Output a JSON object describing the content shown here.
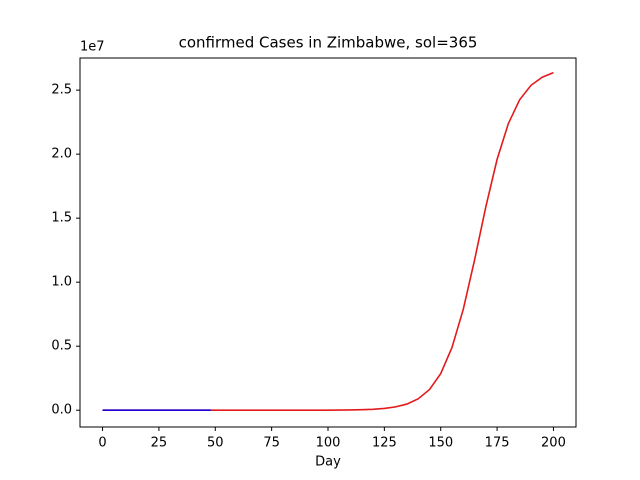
{
  "chart_data": {
    "type": "line",
    "title": "confirmed Cases in Zimbabwe, sol=365",
    "x_label": "Day",
    "y_offset_label": "1e7",
    "xlim": [
      -10,
      210
    ],
    "xticks": [
      0,
      25,
      50,
      75,
      100,
      125,
      150,
      175,
      200
    ],
    "ylim": [
      -1310000,
      27510000
    ],
    "yticks": [
      {
        "value": 0,
        "label": "0.0"
      },
      {
        "value": 5000000,
        "label": "0.5"
      },
      {
        "value": 10000000,
        "label": "1.0"
      },
      {
        "value": 15000000,
        "label": "1.5"
      },
      {
        "value": 20000000,
        "label": "2.0"
      },
      {
        "value": 25000000,
        "label": "2.5"
      }
    ],
    "grid": false,
    "series": [
      {
        "color": "#e31a1c",
        "x": [
          0,
          5,
          10,
          15,
          20,
          25,
          30,
          35,
          40,
          45,
          50,
          55,
          60,
          65,
          70,
          75,
          80,
          85,
          90,
          95,
          100,
          105,
          110,
          115,
          120,
          125,
          130,
          135,
          140,
          145,
          150,
          155,
          160,
          165,
          170,
          175,
          180,
          185,
          190,
          195,
          200
        ],
        "values": [
          0.023,
          0.043,
          0.081,
          0.15,
          0.28,
          0.53,
          0.98,
          1.8,
          3.4,
          6.4,
          12,
          22,
          42,
          78,
          146,
          272,
          508,
          947,
          1770,
          3307,
          6180,
          11540,
          21540,
          40240,
          75100,
          140000,
          260200,
          481000,
          887000,
          1610000,
          2860000,
          4900000,
          7880000,
          11730000,
          15890000,
          19590000,
          22390000,
          24250000,
          25370000,
          26010000,
          26370000
        ]
      },
      {
        "color": "#1f00d6",
        "x": [
          0,
          4,
          8,
          12,
          16,
          20,
          24,
          28,
          32,
          36,
          40,
          44,
          48
        ],
        "values": [
          0,
          1,
          2,
          3,
          5,
          7,
          9,
          11,
          14,
          17,
          25,
          34,
          40
        ]
      }
    ]
  }
}
